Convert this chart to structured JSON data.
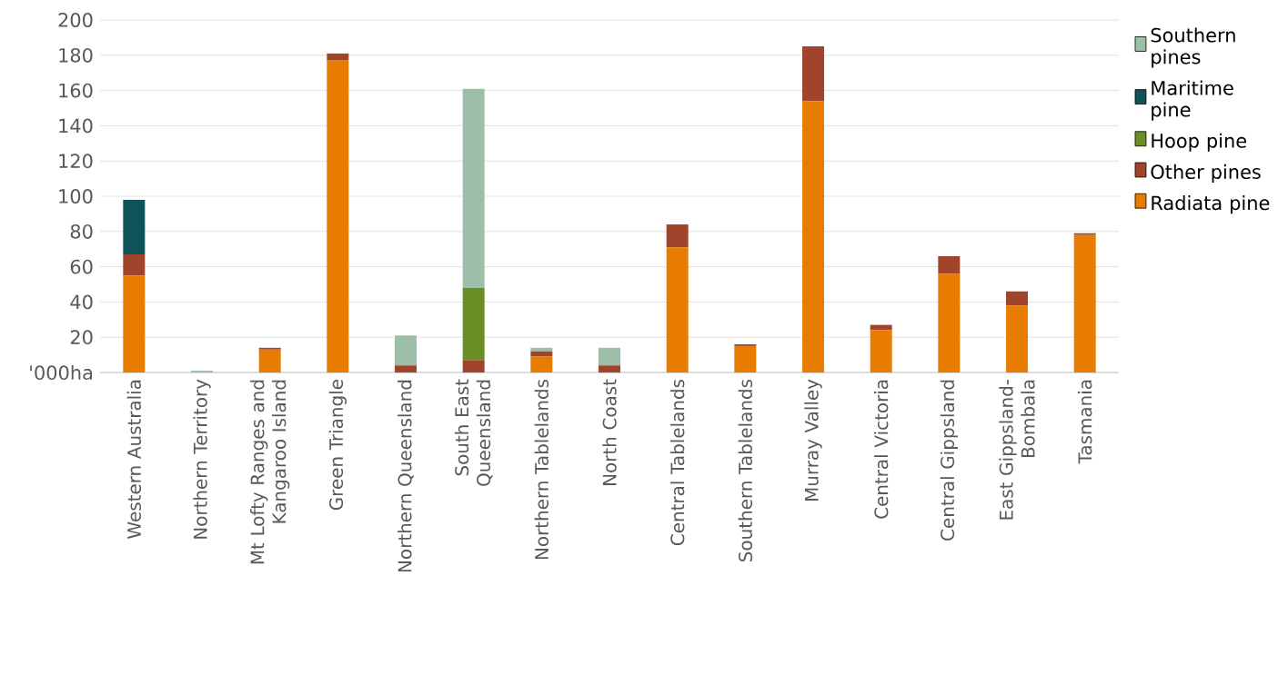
{
  "chart_data": {
    "type": "bar",
    "stacked": true,
    "categories": [
      "Western Australia",
      "Northern Territory",
      "Mt Lofty Ranges and Kangaroo Island",
      "Green Triangle",
      "Northern Queensland",
      "South East Queensland",
      "Northern Tablelands",
      "North Coast",
      "Central Tablelands",
      "Southern Tablelands",
      "Murray Valley",
      "Central Victoria",
      "Central Gippsland",
      "East Gippsland-Bombala",
      "Tasmania"
    ],
    "series": [
      {
        "name": "Radiata pine",
        "color": "#e87c00",
        "values": [
          55,
          0,
          13,
          177,
          0,
          0,
          9,
          0,
          71,
          15,
          154,
          24,
          56,
          38,
          78
        ]
      },
      {
        "name": "Other pines",
        "color": "#a0442c",
        "values": [
          12,
          0,
          1,
          4,
          4,
          7,
          3,
          4,
          13,
          1,
          31,
          3,
          10,
          8,
          1
        ]
      },
      {
        "name": "Hoop pine",
        "color": "#6a8e23",
        "values": [
          0,
          0,
          0,
          0,
          0,
          41,
          0,
          0,
          0,
          0,
          0,
          0,
          0,
          0,
          0
        ]
      },
      {
        "name": "Maritime pine",
        "color": "#0f5257",
        "values": [
          31,
          0,
          0,
          0,
          0,
          0,
          0,
          0,
          0,
          0,
          0,
          0,
          0,
          0,
          0
        ]
      },
      {
        "name": "Southern pines",
        "color": "#9dbfaa",
        "values": [
          0,
          1,
          0,
          0,
          17,
          113,
          2,
          10,
          0,
          0,
          0,
          0,
          0,
          0,
          0
        ]
      }
    ],
    "ylim": [
      0,
      200
    ],
    "yticks": [
      {
        "value": 0,
        "label": "'000ha"
      },
      20,
      40,
      60,
      80,
      100,
      120,
      140,
      160,
      180,
      200
    ],
    "grid": "y",
    "legend": "right"
  }
}
